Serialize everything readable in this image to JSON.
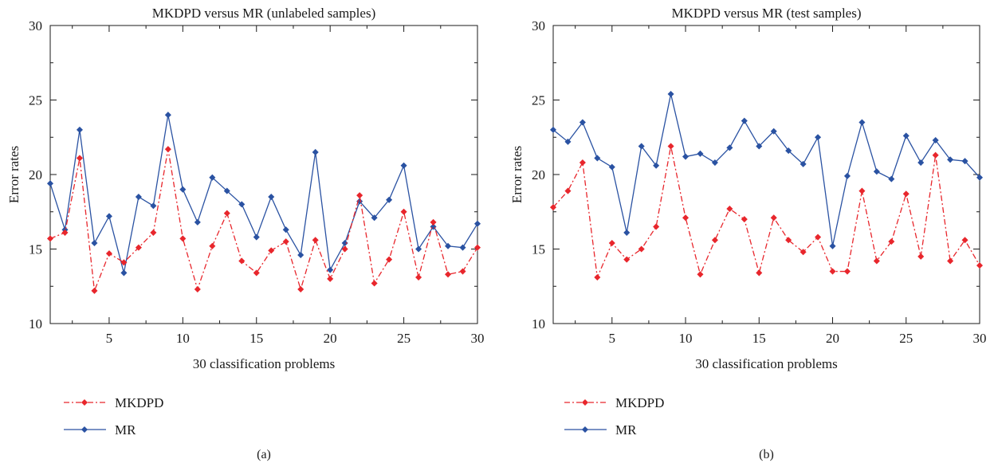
{
  "colors": {
    "mkdpd": "#e8262c",
    "mr": "#2a52a2",
    "axis": "#1a1a1a"
  },
  "chart_data": [
    {
      "type": "line",
      "title": "MKDPD versus MR (unlabeled samples)",
      "xlabel": "30 classification problems",
      "ylabel": "Error rates",
      "caption": "(a)",
      "xlim": [
        1,
        30
      ],
      "ylim": [
        10,
        30
      ],
      "xticks": [
        5,
        10,
        15,
        20,
        25,
        30
      ],
      "yticks": [
        10,
        15,
        20,
        25,
        30
      ],
      "grid": false,
      "legend_position": "below",
      "x": [
        1,
        2,
        3,
        4,
        5,
        6,
        7,
        8,
        9,
        10,
        11,
        12,
        13,
        14,
        15,
        16,
        17,
        18,
        19,
        20,
        21,
        22,
        23,
        24,
        25,
        26,
        27,
        28,
        29,
        30
      ],
      "series": [
        {
          "name": "MKDPD",
          "color": "#e8262c",
          "style": "dash-dot",
          "marker": "diamond",
          "values": [
            15.7,
            16.1,
            21.1,
            12.2,
            14.7,
            14.1,
            15.1,
            16.1,
            21.7,
            15.7,
            12.3,
            15.2,
            17.4,
            14.2,
            13.4,
            14.9,
            15.5,
            12.3,
            15.6,
            13.0,
            15.0,
            18.6,
            12.7,
            14.3,
            17.5,
            13.1,
            16.8,
            13.3,
            13.5,
            15.1
          ]
        },
        {
          "name": "MR",
          "color": "#2a52a2",
          "style": "solid",
          "marker": "diamond",
          "values": [
            19.4,
            16.3,
            23.0,
            15.4,
            17.2,
            13.4,
            18.5,
            17.9,
            24.0,
            19.0,
            16.8,
            19.8,
            18.9,
            18.0,
            15.8,
            18.5,
            16.3,
            14.6,
            21.5,
            13.6,
            15.4,
            18.2,
            17.1,
            18.3,
            20.6,
            15.0,
            16.5,
            15.2,
            15.1,
            16.7
          ]
        }
      ]
    },
    {
      "type": "line",
      "title": "MKDPD versus MR (test samples)",
      "xlabel": "30 classification problems",
      "ylabel": "Error rates",
      "caption": "(b)",
      "xlim": [
        1,
        30
      ],
      "ylim": [
        10,
        30
      ],
      "xticks": [
        5,
        10,
        15,
        20,
        25,
        30
      ],
      "yticks": [
        10,
        15,
        20,
        25,
        30
      ],
      "grid": false,
      "legend_position": "below",
      "x": [
        1,
        2,
        3,
        4,
        5,
        6,
        7,
        8,
        9,
        10,
        11,
        12,
        13,
        14,
        15,
        16,
        17,
        18,
        19,
        20,
        21,
        22,
        23,
        24,
        25,
        26,
        27,
        28,
        29,
        30
      ],
      "series": [
        {
          "name": "MKDPD",
          "color": "#e8262c",
          "style": "dash-dot",
          "marker": "diamond",
          "values": [
            17.8,
            18.9,
            20.8,
            13.1,
            15.4,
            14.3,
            15.0,
            16.5,
            21.9,
            17.1,
            13.3,
            15.6,
            17.7,
            17.0,
            13.4,
            17.1,
            15.6,
            14.8,
            15.8,
            13.5,
            13.5,
            18.9,
            14.2,
            15.5,
            18.7,
            14.5,
            21.3,
            14.2,
            15.6,
            13.9
          ]
        },
        {
          "name": "MR",
          "color": "#2a52a2",
          "style": "solid",
          "marker": "diamond",
          "values": [
            23.0,
            22.2,
            23.5,
            21.1,
            20.5,
            16.1,
            21.9,
            20.6,
            25.4,
            21.2,
            21.4,
            20.8,
            21.8,
            23.6,
            21.9,
            22.9,
            21.6,
            20.7,
            22.5,
            15.2,
            19.9,
            23.5,
            20.2,
            19.7,
            22.6,
            20.8,
            22.3,
            21.0,
            20.9,
            19.8
          ]
        }
      ]
    }
  ]
}
